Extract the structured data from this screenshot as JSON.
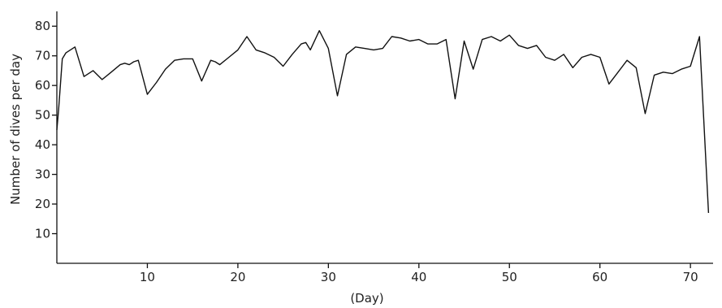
{
  "chart_data": {
    "type": "line",
    "title": "",
    "xlabel": "(Day)",
    "ylabel": "Number of dives per day",
    "xlim": [
      0,
      72.5
    ],
    "ylim": [
      0,
      85
    ],
    "xticks": [
      10,
      20,
      30,
      40,
      50,
      60,
      70
    ],
    "yticks": [
      10,
      20,
      30,
      40,
      50,
      60,
      70,
      80
    ],
    "grid": false,
    "series": [
      {
        "x": [
          0,
          0.2,
          0.6,
          1,
          2,
          3,
          4,
          5,
          6,
          7,
          7.5,
          8,
          8.5,
          9,
          10,
          11,
          12,
          13,
          14,
          15,
          16,
          17,
          17.5,
          18,
          19,
          20,
          21,
          22,
          23,
          24,
          25,
          26,
          27,
          27.5,
          28,
          29,
          30,
          31,
          32,
          33,
          34,
          35,
          36,
          37,
          38,
          39,
          40,
          41,
          42,
          43,
          44,
          45,
          46,
          47,
          48,
          49,
          50,
          51,
          52,
          53,
          54,
          55,
          56,
          57,
          58,
          59,
          60,
          61,
          62,
          63,
          64,
          65,
          66,
          67,
          68,
          69,
          70,
          71,
          72
        ],
        "y": [
          45,
          52,
          69,
          71,
          73,
          63,
          65,
          62,
          64.5,
          67,
          67.5,
          67,
          68,
          68.5,
          57,
          61,
          65.5,
          68.5,
          69,
          69,
          61.5,
          68.5,
          68,
          67,
          69.5,
          72,
          76.5,
          72,
          71,
          69.5,
          66.5,
          70.5,
          74,
          74.5,
          72,
          78.5,
          72.5,
          56.5,
          70.5,
          73,
          72.5,
          72,
          72.5,
          76.5,
          76,
          75,
          75.5,
          74,
          74,
          75.5,
          55.5,
          75,
          65.5,
          75.5,
          76.5,
          75,
          77,
          73.5,
          72.5,
          73.5,
          69.5,
          68.5,
          70.5,
          66,
          69.5,
          70.5,
          69.5,
          60.5,
          64.5,
          68.5,
          66,
          50.5,
          63.5,
          64.5,
          64,
          65.5,
          66.5,
          76.5,
          17
        ]
      }
    ]
  }
}
